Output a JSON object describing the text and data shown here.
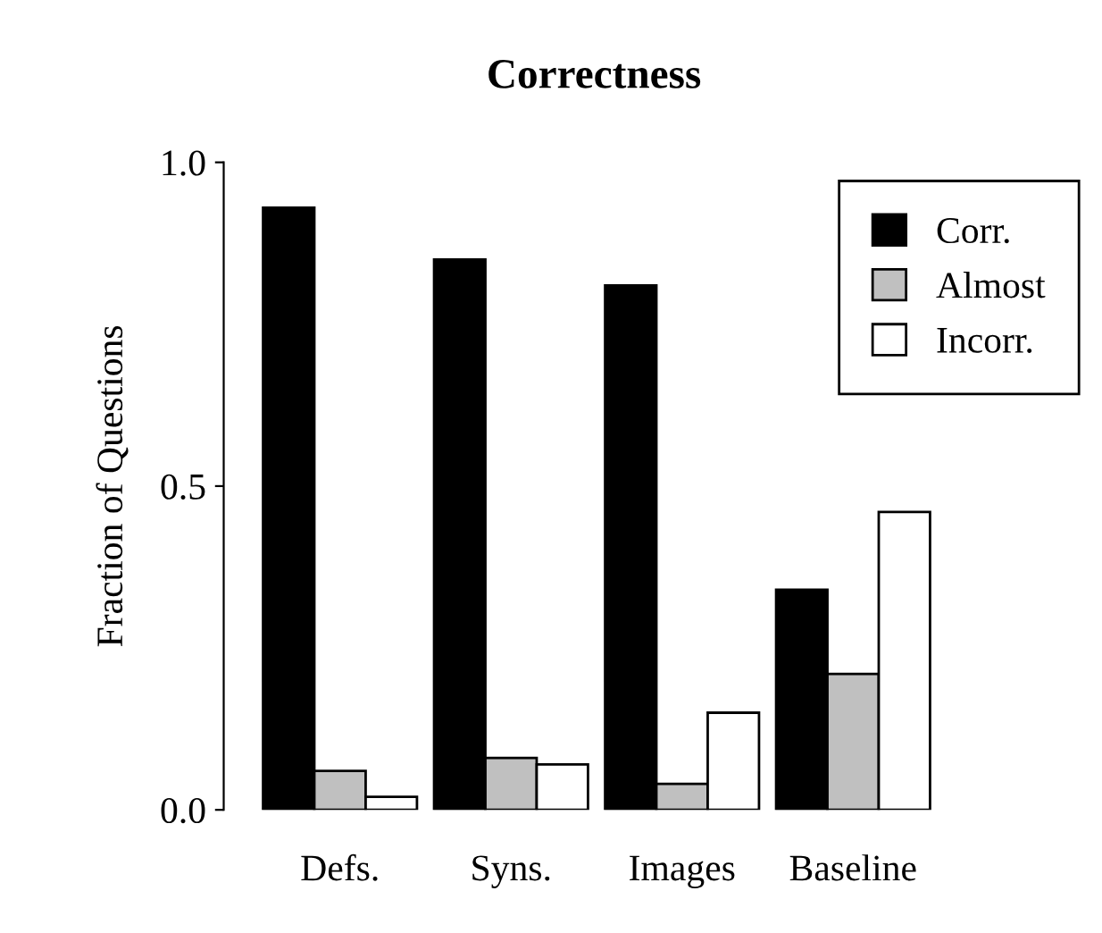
{
  "chart_data": {
    "type": "bar",
    "title": "Correctness",
    "ylabel": "Fraction of Questions",
    "categories": [
      "Defs.",
      "Syns.",
      "Images",
      "Baseline"
    ],
    "series": [
      {
        "name": "Corr.",
        "color": "#000000",
        "values": [
          0.93,
          0.85,
          0.81,
          0.34
        ]
      },
      {
        "name": "Almost",
        "color": "#c0c0c0",
        "values": [
          0.06,
          0.08,
          0.04,
          0.21
        ]
      },
      {
        "name": "Incorr.",
        "color": "#ffffff",
        "values": [
          0.02,
          0.07,
          0.15,
          0.46
        ]
      }
    ],
    "ylim": [
      0,
      1.0
    ],
    "yticks": [
      {
        "value": 0,
        "label": "0.0"
      },
      {
        "value": 0.5,
        "label": "0.5"
      },
      {
        "value": 1.0,
        "label": "1.0"
      }
    ],
    "grid": false,
    "legend": "top right"
  }
}
